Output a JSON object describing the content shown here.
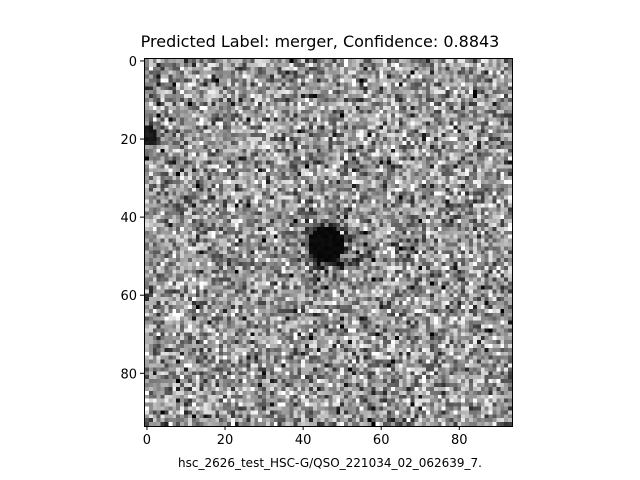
{
  "plot": {
    "title": "Predicted Label: merger, Confidence: 0.8843",
    "xlabel": "hsc_2626_test_HSC-G/QSO_221034_02_062639_7.",
    "image": {
      "colormap": "grayscale",
      "extent_pixels": [
        94,
        94
      ],
      "background": "noisy-gray",
      "source": {
        "x": 46,
        "y": 47,
        "shape": "dark-blob"
      },
      "secondary_feature": {
        "x": 0,
        "y": 19,
        "shape": "dark-edge-blob"
      }
    },
    "xticks": [
      0,
      20,
      40,
      60,
      80
    ],
    "yticks": [
      0,
      20,
      40,
      60,
      80
    ],
    "xtick_labels": [
      "0",
      "20",
      "40",
      "60",
      "80"
    ],
    "ytick_labels": [
      "0",
      "20",
      "40",
      "60",
      "80"
    ]
  }
}
